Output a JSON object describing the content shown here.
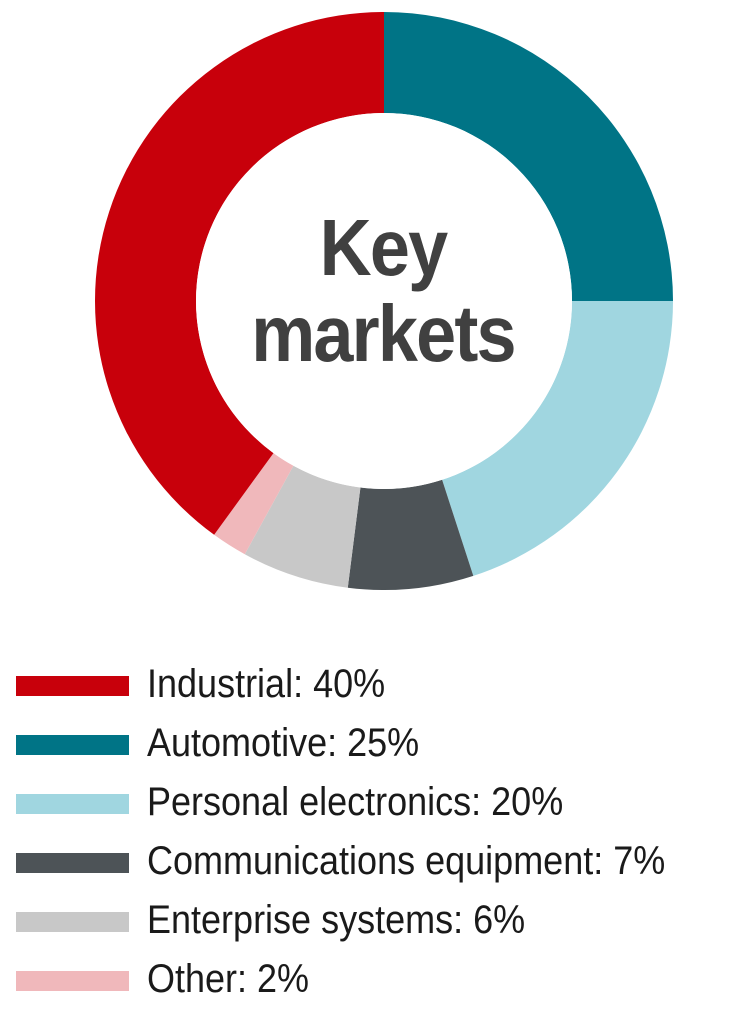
{
  "chart_data": {
    "type": "pie",
    "title": "Key markets",
    "title_lines": [
      "Key",
      "markets"
    ],
    "donut": true,
    "legend_position": "bottom",
    "series": [
      {
        "name": "Key markets",
        "slices": [
          {
            "label": "Industrial",
            "value": 40,
            "color": "#c8000b",
            "legend_text": "Industrial: 40%"
          },
          {
            "label": "Automotive",
            "value": 25,
            "color": "#007486",
            "legend_text": "Automotive: 25%"
          },
          {
            "label": "Personal electronics",
            "value": 20,
            "color": "#a0d6e0",
            "legend_text": "Personal electronics: 20%"
          },
          {
            "label": "Communications equipment",
            "value": 7,
            "color": "#4d5357",
            "legend_text": "Communications equipment: 7%"
          },
          {
            "label": "Enterprise systems",
            "value": 6,
            "color": "#c8c8c8",
            "legend_text": "Enterprise systems: 6%"
          },
          {
            "label": "Other",
            "value": 2,
            "color": "#f0b8bb",
            "legend_text": "Other: 2%"
          }
        ]
      }
    ],
    "draw_order": [
      "Automotive",
      "Personal electronics",
      "Communications equipment",
      "Enterprise systems",
      "Other",
      "Industrial"
    ],
    "start": "top",
    "direction": "clockwise"
  }
}
